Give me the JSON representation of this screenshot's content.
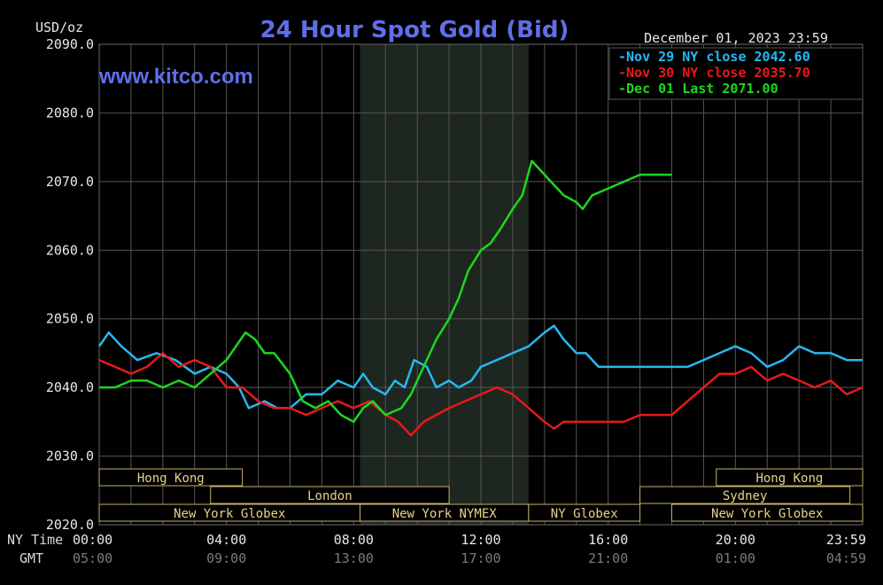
{
  "chart_data": {
    "type": "line",
    "title": "24 Hour Spot Gold (Bid)",
    "website": "www.kitco.com",
    "ylabel": "USD/oz",
    "timestamp": "December 01, 2023 23:59",
    "ylim": [
      2020,
      2090
    ],
    "yticks": [
      2020,
      2030,
      2040,
      2050,
      2060,
      2070,
      2080,
      2090
    ],
    "ytick_labels": [
      "2020.0",
      "2030.0",
      "2040.0",
      "2050.0",
      "2060.0",
      "2070.0",
      "2080.0",
      "2090.0"
    ],
    "x_range_hours": [
      0,
      24
    ],
    "xtick_hours": [
      0,
      4,
      8,
      12,
      16,
      20,
      24
    ],
    "ny_time_label": "NY Time",
    "gmt_label": "GMT",
    "ny_time_ticks": [
      "00:00",
      "04:00",
      "08:00",
      "12:00",
      "16:00",
      "20:00",
      "23:59"
    ],
    "gmt_ticks": [
      "05:00",
      "09:00",
      "13:00",
      "17:00",
      "21:00",
      "01:00",
      "04:59"
    ],
    "grid": true,
    "legend_position": "top-right",
    "shaded_session_hours": [
      8.2,
      13.5
    ],
    "sessions": [
      {
        "label": "Hong Kong",
        "start": 0,
        "end": 4.5,
        "row": 0
      },
      {
        "label": "Hong Kong",
        "start": 19.4,
        "end": 24,
        "row": 0
      },
      {
        "label": "London",
        "start": 3.5,
        "end": 11.0,
        "row": 1
      },
      {
        "label": "Sydney",
        "start": 17.0,
        "end": 23.6,
        "row": 1
      },
      {
        "label": "New York Globex",
        "start": 0,
        "end": 8.2,
        "row": 2
      },
      {
        "label": "New York NYMEX",
        "start": 8.2,
        "end": 13.5,
        "row": 2
      },
      {
        "label": "NY Globex",
        "start": 13.5,
        "end": 17.0,
        "row": 2
      },
      {
        "label": "New York Globex",
        "start": 18.0,
        "end": 24,
        "row": 2
      }
    ],
    "series": [
      {
        "name": "Nov 29 NY close 2042.60",
        "color": "#27b8f0",
        "points": [
          [
            0,
            2046
          ],
          [
            0.3,
            2048
          ],
          [
            0.7,
            2046
          ],
          [
            1.2,
            2044
          ],
          [
            1.8,
            2045
          ],
          [
            2.4,
            2044
          ],
          [
            3,
            2042
          ],
          [
            3.5,
            2043
          ],
          [
            4,
            2042
          ],
          [
            4.4,
            2040
          ],
          [
            4.7,
            2037
          ],
          [
            5.2,
            2038
          ],
          [
            5.6,
            2037
          ],
          [
            6,
            2037
          ],
          [
            6.5,
            2039
          ],
          [
            7,
            2039
          ],
          [
            7.5,
            2041
          ],
          [
            8,
            2040
          ],
          [
            8.3,
            2042
          ],
          [
            8.6,
            2040
          ],
          [
            9,
            2039
          ],
          [
            9.3,
            2041
          ],
          [
            9.6,
            2040
          ],
          [
            9.9,
            2044
          ],
          [
            10.3,
            2043
          ],
          [
            10.6,
            2040
          ],
          [
            11,
            2041
          ],
          [
            11.3,
            2040
          ],
          [
            11.7,
            2041
          ],
          [
            12,
            2043
          ],
          [
            12.5,
            2044
          ],
          [
            13,
            2045
          ],
          [
            13.5,
            2046
          ],
          [
            14,
            2048
          ],
          [
            14.3,
            2049
          ],
          [
            14.6,
            2047
          ],
          [
            15,
            2045
          ],
          [
            15.3,
            2045
          ],
          [
            15.7,
            2043
          ],
          [
            16,
            2043
          ],
          [
            16.5,
            2043
          ],
          [
            17,
            2043
          ],
          [
            18,
            2043
          ],
          [
            18.5,
            2043
          ],
          [
            19,
            2044
          ],
          [
            19.5,
            2045
          ],
          [
            20,
            2046
          ],
          [
            20.5,
            2045
          ],
          [
            21,
            2043
          ],
          [
            21.5,
            2044
          ],
          [
            22,
            2046
          ],
          [
            22.5,
            2045
          ],
          [
            23,
            2045
          ],
          [
            23.5,
            2044
          ],
          [
            24,
            2044
          ]
        ]
      },
      {
        "name": "Nov 30 NY close 2035.70",
        "color": "#e8191a",
        "points": [
          [
            0,
            2044
          ],
          [
            0.5,
            2043
          ],
          [
            1,
            2042
          ],
          [
            1.5,
            2043
          ],
          [
            2,
            2045
          ],
          [
            2.5,
            2043
          ],
          [
            3,
            2044
          ],
          [
            3.5,
            2043
          ],
          [
            4,
            2040
          ],
          [
            4.5,
            2040
          ],
          [
            5,
            2038
          ],
          [
            5.5,
            2037
          ],
          [
            6,
            2037
          ],
          [
            6.5,
            2036
          ],
          [
            7,
            2037
          ],
          [
            7.5,
            2038
          ],
          [
            8,
            2037
          ],
          [
            8.5,
            2038
          ],
          [
            9,
            2036
          ],
          [
            9.4,
            2035
          ],
          [
            9.8,
            2033
          ],
          [
            10.2,
            2035
          ],
          [
            10.6,
            2036
          ],
          [
            11,
            2037
          ],
          [
            11.5,
            2038
          ],
          [
            12,
            2039
          ],
          [
            12.5,
            2040
          ],
          [
            13,
            2039
          ],
          [
            13.5,
            2037
          ],
          [
            14,
            2035
          ],
          [
            14.3,
            2034
          ],
          [
            14.6,
            2035
          ],
          [
            15,
            2035
          ],
          [
            15.5,
            2035
          ],
          [
            16,
            2035
          ],
          [
            16.5,
            2035
          ],
          [
            17,
            2036
          ],
          [
            17.5,
            2036
          ],
          [
            18,
            2036
          ],
          [
            18.5,
            2038
          ],
          [
            19,
            2040
          ],
          [
            19.5,
            2042
          ],
          [
            20,
            2042
          ],
          [
            20.5,
            2043
          ],
          [
            21,
            2041
          ],
          [
            21.5,
            2042
          ],
          [
            22,
            2041
          ],
          [
            22.5,
            2040
          ],
          [
            23,
            2041
          ],
          [
            23.5,
            2039
          ],
          [
            24,
            2040
          ]
        ]
      },
      {
        "name": "Dec 01 Last 2071.00",
        "color": "#1ed71e",
        "points": [
          [
            0,
            2040
          ],
          [
            0.5,
            2040
          ],
          [
            1,
            2041
          ],
          [
            1.5,
            2041
          ],
          [
            2,
            2040
          ],
          [
            2.5,
            2041
          ],
          [
            3,
            2040
          ],
          [
            3.5,
            2042
          ],
          [
            4,
            2044
          ],
          [
            4.3,
            2046
          ],
          [
            4.6,
            2048
          ],
          [
            4.9,
            2047
          ],
          [
            5.2,
            2045
          ],
          [
            5.5,
            2045
          ],
          [
            6,
            2042
          ],
          [
            6.4,
            2038
          ],
          [
            6.8,
            2037
          ],
          [
            7.2,
            2038
          ],
          [
            7.6,
            2036
          ],
          [
            8,
            2035
          ],
          [
            8.3,
            2037
          ],
          [
            8.6,
            2038
          ],
          [
            9,
            2036
          ],
          [
            9.5,
            2037
          ],
          [
            9.8,
            2039
          ],
          [
            10.2,
            2043
          ],
          [
            10.6,
            2047
          ],
          [
            11,
            2050
          ],
          [
            11.3,
            2053
          ],
          [
            11.6,
            2057
          ],
          [
            12,
            2060
          ],
          [
            12.3,
            2061
          ],
          [
            12.6,
            2063
          ],
          [
            13,
            2066
          ],
          [
            13.3,
            2068
          ],
          [
            13.6,
            2073
          ],
          [
            13.8,
            2072
          ],
          [
            14.2,
            2070
          ],
          [
            14.6,
            2068
          ],
          [
            15,
            2067
          ],
          [
            15.2,
            2066
          ],
          [
            15.5,
            2068
          ],
          [
            16,
            2069
          ],
          [
            16.5,
            2070
          ],
          [
            17,
            2071
          ],
          [
            17.5,
            2071
          ],
          [
            18,
            2071
          ]
        ]
      }
    ]
  }
}
